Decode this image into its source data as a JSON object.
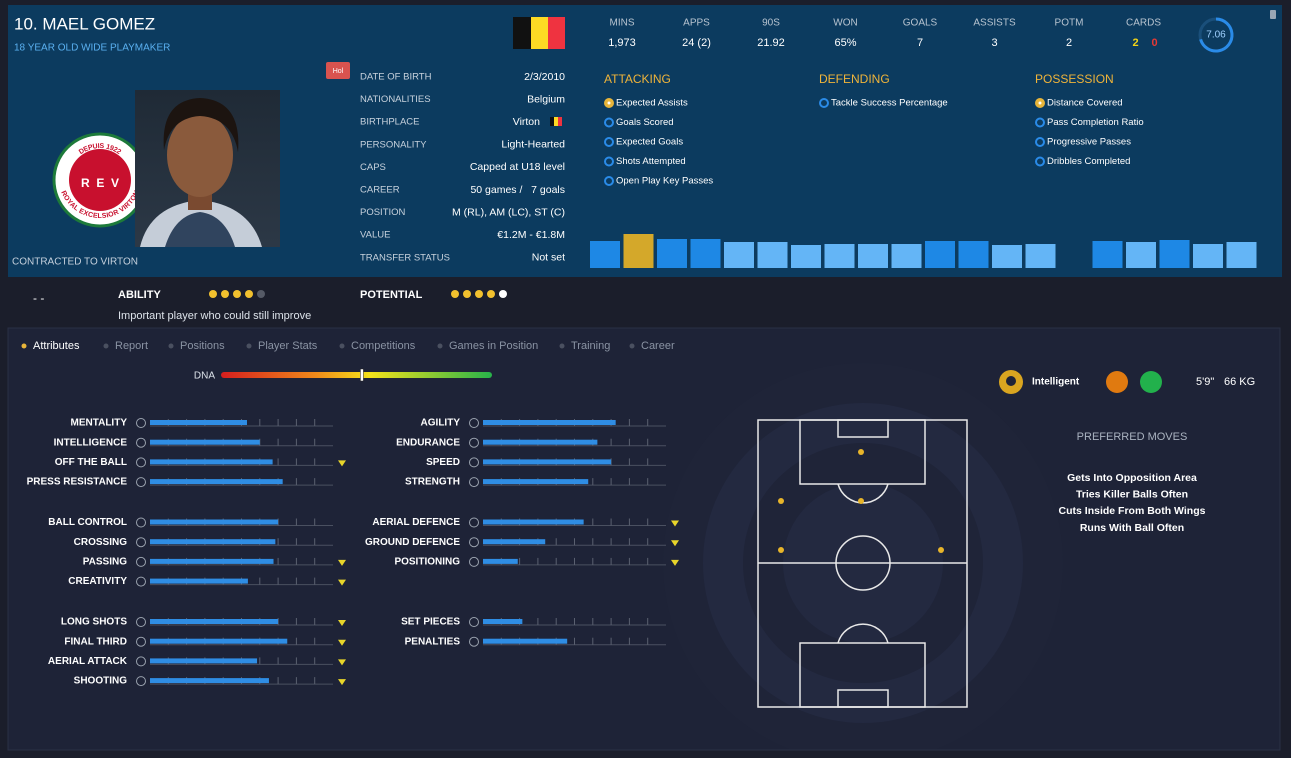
{
  "header": {
    "name": "10. MAEL GOMEZ",
    "subtitle": "18 YEAR OLD WIDE PLAYMAKER",
    "badge": "Hol",
    "contract": "CONTRACTED TO VIRTON"
  },
  "crest": {
    "top": "DEPUIS 1922",
    "ring": "ROYAL EXCELSIOR VIRTON",
    "letters": "R  E  V"
  },
  "details": [
    {
      "label": "DATE OF BIRTH",
      "value": "2/3/2010"
    },
    {
      "label": "NATIONALITIES",
      "value": "Belgium"
    },
    {
      "label": "BIRTHPLACE",
      "value": "Virton"
    },
    {
      "label": "PERSONALITY",
      "value": "Light-Hearted"
    },
    {
      "label": "CAPS",
      "value": "Capped at U18 level"
    },
    {
      "label": "CAREER",
      "value": "50 games /   7 goals"
    },
    {
      "label": "POSITION",
      "value": "M (RL), AM (LC), ST (C)"
    },
    {
      "label": "VALUE",
      "value": "€1.2M - €1.8M"
    },
    {
      "label": "TRANSFER STATUS",
      "value": "Not set"
    }
  ],
  "stats": [
    {
      "label": "MINS",
      "value": "1,973"
    },
    {
      "label": "APPS",
      "value": "24 (2)"
    },
    {
      "label": "90S",
      "value": "21.92"
    },
    {
      "label": "WON",
      "value": "65%"
    },
    {
      "label": "GOALS",
      "value": "7"
    },
    {
      "label": "ASSISTS",
      "value": "3"
    },
    {
      "label": "POTM",
      "value": "2"
    },
    {
      "label": "CARDS",
      "values": [
        "2",
        "0"
      ],
      "colors": [
        "#f2d417",
        "#e53935"
      ]
    }
  ],
  "rating": {
    "value": 7.06,
    "range": [
      0,
      10
    ]
  },
  "sections": [
    {
      "title": "ATTACKING",
      "selected": 0,
      "items": [
        "Expected Assists",
        "Goals Scored",
        "Expected Goals",
        "Shots Attempted",
        "Open Play Key Passes"
      ]
    },
    {
      "title": "DEFENDING",
      "items": [
        "Tackle Success Percentage"
      ]
    },
    {
      "title": "POSSESSION",
      "selected": 0,
      "items": [
        "Distance Covered",
        "Pass Completion Ratio",
        "Progressive Passes",
        "Dribbles Completed"
      ]
    }
  ],
  "bars": {
    "values": [
      27,
      34,
      29,
      29,
      26,
      26,
      23,
      24,
      24,
      24,
      27,
      27,
      23,
      24,
      null,
      27,
      26,
      28,
      24,
      26
    ],
    "colors": [
      "#1e88e5",
      "#d4a82a",
      "#1e88e5",
      "#1e88e5",
      "#64b5f6",
      "#64b5f6",
      "#64b5f6",
      "#64b5f6",
      "#64b5f6",
      "#64b5f6",
      "#1e88e5",
      "#1e88e5",
      "#64b5f6",
      "#64b5f6",
      null,
      "#1e88e5",
      "#64b5f6",
      "#1e88e5",
      "#64b5f6",
      "#64b5f6"
    ]
  },
  "dash": "- -",
  "ability": {
    "label": "ABILITY",
    "value": 4,
    "max": 5
  },
  "potential": {
    "label": "POTENTIAL",
    "value": 4.5,
    "max": 5
  },
  "note": "Important player who could still improve",
  "tabs": {
    "active": 0,
    "items": [
      "Attributes",
      "Report",
      "Positions",
      "Player Stats",
      "Competitions",
      "Games in Position",
      "Training",
      "Career"
    ]
  },
  "dna": {
    "label": "DNA",
    "value": 0.52,
    "range": [
      0,
      1
    ]
  },
  "attributes": {
    "range": [
      0,
      20
    ],
    "ticks": [
      2,
      4,
      6,
      8,
      10,
      12,
      14,
      16,
      18
    ],
    "columns": [
      [
        [
          {
            "name": "MENTALITY",
            "value": 10.6
          },
          {
            "name": "INTELLIGENCE",
            "value": 12
          },
          {
            "name": "OFF THE BALL",
            "value": 13.4,
            "arrow": true
          },
          {
            "name": "PRESS RESISTANCE",
            "value": 14.5
          }
        ],
        [
          {
            "name": "BALL CONTROL",
            "value": 14
          },
          {
            "name": "CROSSING",
            "value": 13.7
          },
          {
            "name": "PASSING",
            "value": 13.5,
            "arrow": true
          },
          {
            "name": "CREATIVITY",
            "value": 10.7,
            "arrow": true
          }
        ],
        [
          {
            "name": "LONG SHOTS",
            "value": 14,
            "arrow": true
          },
          {
            "name": "FINAL THIRD",
            "value": 15,
            "arrow": true
          },
          {
            "name": "AERIAL ATTACK",
            "value": 11.7,
            "arrow": true
          },
          {
            "name": "SHOOTING",
            "value": 13,
            "arrow": true
          }
        ]
      ],
      [
        [
          {
            "name": "AGILITY",
            "value": 14.5
          },
          {
            "name": "ENDURANCE",
            "value": 12.5
          },
          {
            "name": "SPEED",
            "value": 14
          },
          {
            "name": "STRENGTH",
            "value": 11.5
          }
        ],
        [
          {
            "name": "AERIAL DEFENCE",
            "value": 11,
            "arrow": true
          },
          {
            "name": "GROUND DEFENCE",
            "value": 6.8,
            "arrow": true
          },
          {
            "name": "POSITIONING",
            "value": 3.8,
            "arrow": true
          }
        ],
        [
          {
            "name": "SET PIECES",
            "value": 4.3
          },
          {
            "name": "PENALTIES",
            "value": 9.2
          }
        ]
      ]
    ]
  },
  "physical": {
    "trait": "Intelligent",
    "height": "5'9\"",
    "weight": "66 KG"
  },
  "preferred_moves": {
    "title": "PREFERRED MOVES",
    "items": [
      "Gets Into Opposition Area",
      "Tries Killer Balls Often",
      "Cuts Inside From Both Wings",
      "Runs With Ball Often"
    ]
  }
}
